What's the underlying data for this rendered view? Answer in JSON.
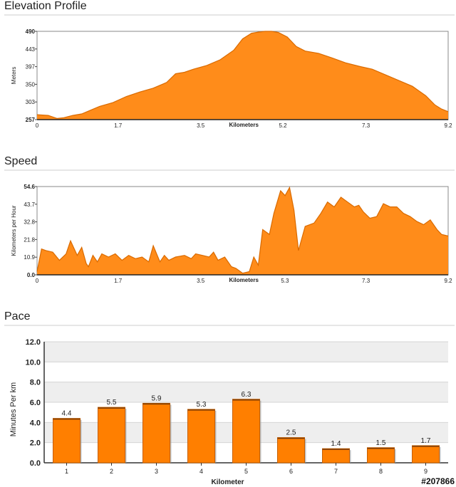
{
  "sections": {
    "elevation_title": "Elevation Profile",
    "speed_title": "Speed",
    "pace_title": "Pace"
  },
  "watermark": "#207866",
  "colors": {
    "fill": "#ff8c1a",
    "stroke": "#d96a00",
    "bar": "#ff7f00",
    "bar_edge": "#c65f00",
    "band": "#eeeeee"
  },
  "chart_data": [
    {
      "type": "area",
      "id": "elevation",
      "xlabel": "Kilometers",
      "ylabel": "Meters",
      "xlim": [
        0,
        9.2
      ],
      "ylim": [
        257,
        490
      ],
      "xticks": [
        "0",
        "1.7",
        "3.5",
        "5.2",
        "7.3",
        "9.2"
      ],
      "yticks": [
        "490",
        "443",
        "397",
        "350",
        "303",
        "257"
      ],
      "x": [
        0,
        0.25,
        0.45,
        0.6,
        0.8,
        1.0,
        1.2,
        1.4,
        1.7,
        2.0,
        2.3,
        2.6,
        2.9,
        3.1,
        3.3,
        3.5,
        3.8,
        4.1,
        4.4,
        4.6,
        4.8,
        4.95,
        5.1,
        5.25,
        5.4,
        5.6,
        5.8,
        6.0,
        6.3,
        6.6,
        6.9,
        7.2,
        7.5,
        7.8,
        8.1,
        8.4,
        8.7,
        8.9,
        9.05,
        9.2
      ],
      "y": [
        270,
        268,
        260,
        262,
        268,
        272,
        282,
        292,
        302,
        318,
        330,
        340,
        355,
        378,
        382,
        390,
        400,
        415,
        440,
        470,
        485,
        488,
        490,
        490,
        487,
        475,
        450,
        438,
        432,
        420,
        407,
        398,
        390,
        375,
        360,
        345,
        320,
        296,
        285,
        278
      ]
    },
    {
      "type": "area",
      "id": "speed",
      "xlabel": "Kilometers",
      "ylabel": "Kilometers per Hour",
      "xlim": [
        0,
        9.2
      ],
      "ylim": [
        0,
        54.6
      ],
      "xticks": [
        "0",
        "1.7",
        "3.5",
        "5.3",
        "7.3",
        "9.2"
      ],
      "yticks": [
        "54.6",
        "43.7",
        "32.8",
        "21.8",
        "10.9",
        "0.0"
      ],
      "x": [
        0,
        0.1,
        0.2,
        0.35,
        0.5,
        0.65,
        0.75,
        0.9,
        1.0,
        1.1,
        1.15,
        1.25,
        1.35,
        1.45,
        1.6,
        1.75,
        1.9,
        2.05,
        2.2,
        2.35,
        2.5,
        2.6,
        2.75,
        2.85,
        2.95,
        3.1,
        3.3,
        3.45,
        3.55,
        3.7,
        3.85,
        3.95,
        4.05,
        4.2,
        4.35,
        4.45,
        4.6,
        4.75,
        4.85,
        4.95,
        5.05,
        5.2,
        5.3,
        5.45,
        5.55,
        5.65,
        5.75,
        5.85,
        6.0,
        6.2,
        6.35,
        6.5,
        6.65,
        6.8,
        6.95,
        7.1,
        7.2,
        7.3,
        7.45,
        7.6,
        7.75,
        7.9,
        8.05,
        8.2,
        8.35,
        8.5,
        8.65,
        8.8,
        8.95,
        9.05,
        9.2
      ],
      "y": [
        2,
        16,
        15,
        14,
        9,
        13,
        21,
        12,
        17,
        7,
        5,
        12,
        8,
        13,
        11,
        13,
        9,
        12,
        10,
        11,
        8,
        18,
        8,
        12,
        9,
        11,
        12,
        10,
        13,
        12,
        11,
        14,
        9,
        11,
        5,
        4,
        1,
        2,
        11,
        6,
        28,
        25,
        38,
        52,
        49,
        54,
        40,
        15,
        30,
        32,
        38,
        45,
        42,
        48,
        45,
        42,
        43,
        39,
        35,
        36,
        44,
        42,
        42,
        38,
        36,
        33,
        31,
        34,
        28,
        25,
        24
      ]
    },
    {
      "type": "bar",
      "id": "pace",
      "xlabel": "Kilometer",
      "ylabel": "Minutes Per km",
      "ylim": [
        0,
        12
      ],
      "categories": [
        "1",
        "2",
        "3",
        "4",
        "5",
        "6",
        "7",
        "8",
        "9"
      ],
      "values": [
        4.4,
        5.5,
        5.9,
        5.3,
        6.3,
        2.5,
        1.4,
        1.5,
        1.7
      ],
      "labels": [
        "4.4",
        "5.5",
        "5.9",
        "5.3",
        "6.3",
        "2.5",
        "1.4",
        "1.5",
        "1.7"
      ],
      "yticks": [
        "12.0",
        "10.0",
        "8.0",
        "6.0",
        "4.0",
        "2.0",
        "0.0"
      ]
    }
  ]
}
